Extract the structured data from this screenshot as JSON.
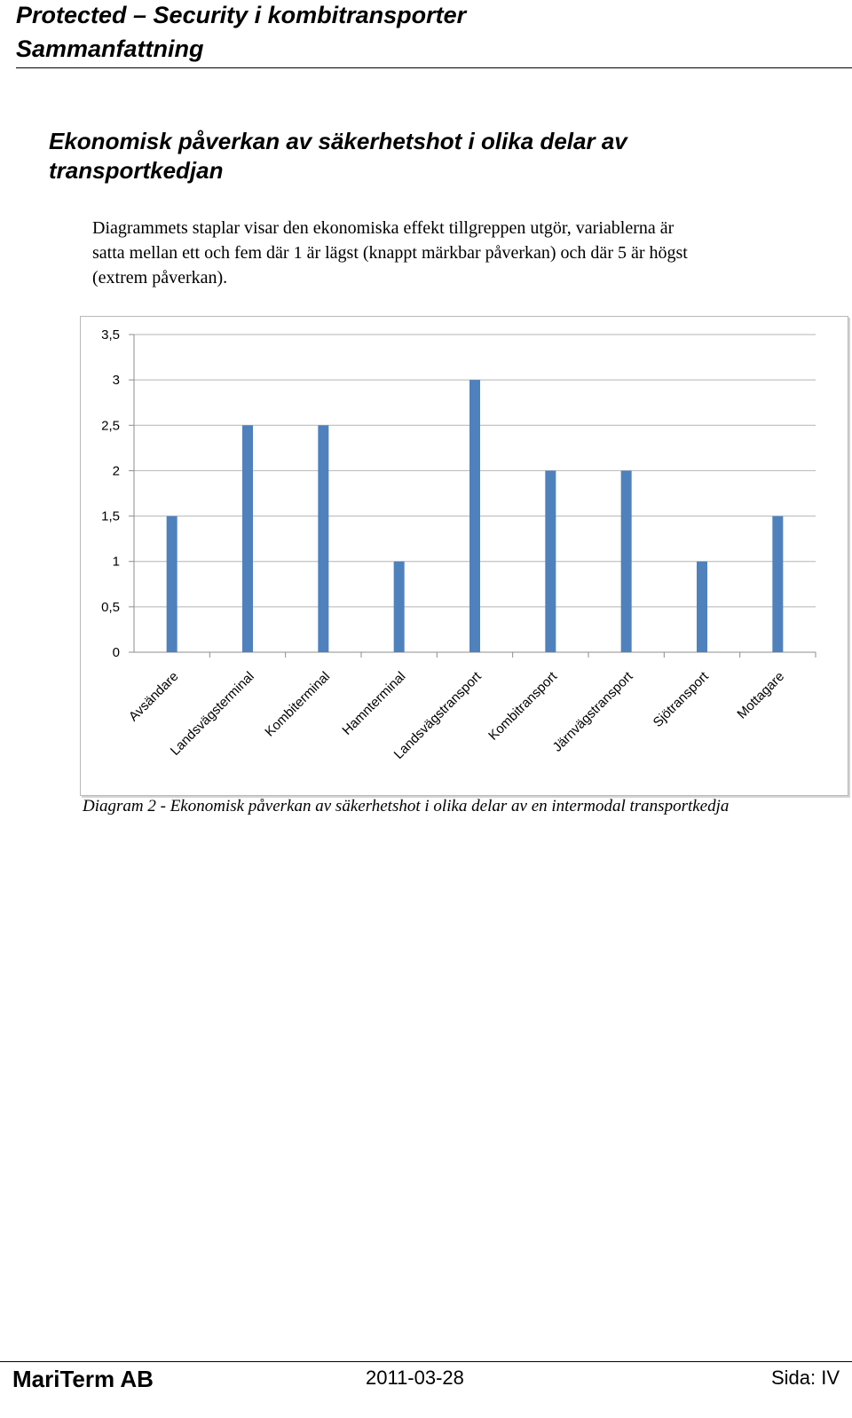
{
  "header": {
    "title": "Protected – Security i kombitransporter",
    "subtitle": "Sammanfattning"
  },
  "section": {
    "heading": "Ekonomisk påverkan av säkerhetshot i olika delar av transportkedjan",
    "body_lines": [
      "Diagrammets staplar visar den ekonomiska effekt tillgreppen utgör, variablerna är",
      "satta mellan ett och fem där 1 är lägst (knappt märkbar påverkan) och där 5 är högst",
      "(extrem påverkan)."
    ]
  },
  "chart_data": {
    "type": "bar",
    "categories": [
      "Avsändare",
      "Landsvägsterminal",
      "Kombiterminal",
      "Hamnterminal",
      "Landsvägstransport",
      "Kombitransport",
      "Järnvägstransport",
      "Sjötransport",
      "Mottagare"
    ],
    "values": [
      1.5,
      2.5,
      2.5,
      1,
      3,
      2,
      2,
      1,
      1.5
    ],
    "yticks": [
      "0",
      "0,5",
      "1",
      "1,5",
      "2",
      "2,5",
      "3",
      "3,5"
    ],
    "ylim": [
      0,
      3.5
    ],
    "grid": true,
    "bar_color": "#4f81bd",
    "title": "",
    "xlabel": "",
    "ylabel": ""
  },
  "caption": "Diagram 2 - Ekonomisk påverkan av säkerhetshot i olika delar av en intermodal transportkedja",
  "footer": {
    "company": "MariTerm AB",
    "date": "2011-03-28",
    "page": "Sida: IV"
  }
}
